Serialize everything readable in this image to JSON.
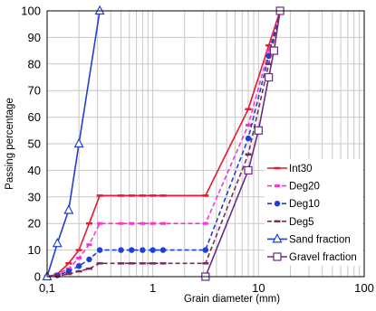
{
  "chart_data": {
    "type": "line",
    "xlabel": "Grain diameter (mm)",
    "ylabel": "Passing percentage",
    "xscale": "log",
    "xlim": [
      0.1,
      100
    ],
    "ylim": [
      0,
      100
    ],
    "grid": true,
    "legend_position": "right",
    "x_tick_labels": [
      "0,1",
      "1",
      "10",
      "100"
    ],
    "x_tick_values": [
      0.1,
      1,
      10,
      100
    ],
    "y_tick_values": [
      0,
      10,
      20,
      30,
      40,
      50,
      60,
      70,
      80,
      90,
      100
    ],
    "y_tick_labels": [
      "0",
      "10",
      "20",
      "30",
      "40",
      "50",
      "60",
      "70",
      "80",
      "90",
      "100"
    ],
    "series": [
      {
        "name": "Int30",
        "color": "#e8192c",
        "dash": "solid",
        "marker": "dash",
        "x": [
          0.1,
          0.125,
          0.16,
          0.2,
          0.25,
          0.315,
          0.5,
          0.63,
          0.8,
          1.0,
          1.25,
          3.15,
          8.0,
          12.5,
          16.0
        ],
        "y": [
          0,
          1,
          5,
          10,
          20,
          30.5,
          30.5,
          30.5,
          30.5,
          30.5,
          30.5,
          30.5,
          63,
          87,
          100
        ]
      },
      {
        "name": "Deg20",
        "color": "#ff33cc",
        "dash": "dashed",
        "marker": "square",
        "x": [
          0.1,
          0.125,
          0.16,
          0.2,
          0.25,
          0.315,
          0.5,
          0.63,
          0.8,
          1.0,
          1.25,
          3.15,
          8.0,
          12.5,
          16.0
        ],
        "y": [
          0,
          1,
          3,
          7,
          12,
          20,
          20,
          20,
          20,
          20,
          20,
          20,
          57,
          85,
          100
        ]
      },
      {
        "name": "Deg10",
        "color": "#1f3fd6",
        "dash": "dashed",
        "marker": "circle",
        "x": [
          0.1,
          0.125,
          0.16,
          0.2,
          0.25,
          0.315,
          0.5,
          0.63,
          0.8,
          1.0,
          1.25,
          3.15,
          8.0,
          12.5,
          16.0
        ],
        "y": [
          0,
          0.5,
          2,
          4,
          6.5,
          10,
          10,
          10,
          10,
          10,
          10,
          10,
          52,
          83,
          100
        ]
      },
      {
        "name": "Deg5",
        "color": "#7b2a5a",
        "dash": "dashed",
        "marker": "dash",
        "x": [
          0.1,
          0.125,
          0.16,
          0.2,
          0.25,
          0.315,
          0.5,
          0.63,
          0.8,
          1.0,
          1.25,
          3.15,
          8.0,
          12.5,
          16.0
        ],
        "y": [
          0,
          0.3,
          1,
          2,
          3,
          5,
          5,
          5,
          5,
          5,
          5,
          5,
          46,
          80,
          100
        ]
      },
      {
        "name": "Sand fraction",
        "color": "#1f3fd6",
        "dash": "solid",
        "marker": "triangle",
        "x": [
          0.1,
          0.125,
          0.16,
          0.2,
          0.315
        ],
        "y": [
          0,
          12.5,
          25,
          50,
          100
        ]
      },
      {
        "name": "Gravel fraction",
        "color": "#6a2a8a",
        "dash": "solid",
        "marker": "open-square",
        "x": [
          3.15,
          8.0,
          10.0,
          12.5,
          14.0,
          16.0
        ],
        "y": [
          0,
          40,
          55,
          75,
          85,
          100
        ]
      }
    ]
  }
}
